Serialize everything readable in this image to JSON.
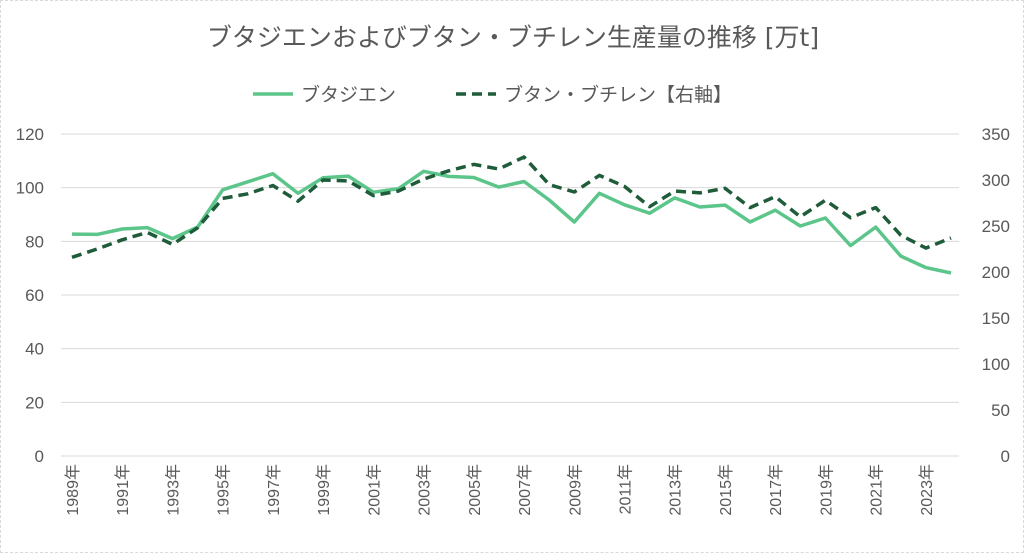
{
  "chart_data": {
    "type": "line",
    "title": "ブタジエンおよびブタン・ブチレン生産量の推移 [万t]",
    "x": [
      1989,
      1990,
      1991,
      1992,
      1993,
      1994,
      1995,
      1996,
      1997,
      1998,
      1999,
      2000,
      2001,
      2002,
      2003,
      2004,
      2005,
      2006,
      2007,
      2008,
      2009,
      2010,
      2011,
      2012,
      2013,
      2014,
      2015,
      2016,
      2017,
      2018,
      2019,
      2020,
      2021,
      2022,
      2023,
      2024
    ],
    "x_tick_labels": [
      "1989年",
      "1991年",
      "1993年",
      "1995年",
      "1997年",
      "1999年",
      "2001年",
      "2003年",
      "2005年",
      "2007年",
      "2009年",
      "2011年",
      "2013年",
      "2015年",
      "2017年",
      "2019年",
      "2021年",
      "2023年"
    ],
    "y_left": {
      "ylim": [
        0,
        120
      ],
      "ticks": [
        0,
        20,
        40,
        60,
        80,
        100,
        120
      ]
    },
    "y_right": {
      "ylim": [
        0,
        350
      ],
      "ticks": [
        0,
        50,
        100,
        150,
        200,
        250,
        300,
        350
      ]
    },
    "grid": true,
    "legend_position": "top",
    "series": [
      {
        "name": "ブタジエン",
        "axis": "left",
        "color": "#5cc58a",
        "style": "solid",
        "values": [
          82.7,
          82.6,
          84.6,
          85.1,
          81.0,
          85.3,
          99.2,
          102.2,
          105.2,
          97.9,
          103.7,
          104.3,
          98.3,
          99.6,
          106.1,
          104.2,
          103.8,
          100.2,
          102.3,
          95.4,
          87.2,
          97.9,
          93.6,
          90.5,
          96.2,
          92.8,
          93.5,
          87.2,
          91.6,
          85.7,
          88.7,
          78.4,
          85.3,
          74.5,
          70.2,
          68.2
        ]
      },
      {
        "name": "ブタン・ブチレン【右軸】",
        "axis": "right",
        "color": "#1e5c3a",
        "style": "dashed",
        "values": [
          216,
          225,
          235,
          243,
          230,
          248,
          280,
          285,
          294,
          277,
          300,
          299,
          283,
          288,
          301,
          310,
          317,
          312,
          325,
          295,
          287,
          305,
          293,
          271,
          288,
          286,
          291,
          270,
          282,
          260,
          278,
          259,
          270,
          240,
          226,
          237
        ]
      }
    ]
  }
}
